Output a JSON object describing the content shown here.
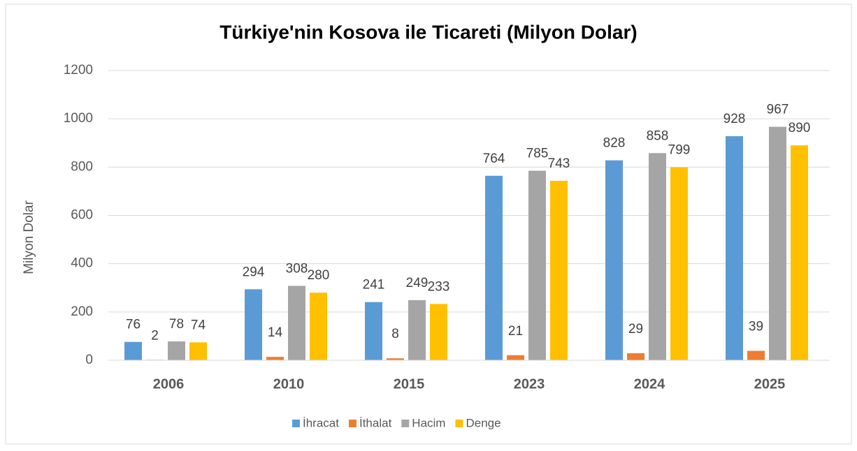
{
  "chart_data": {
    "type": "bar",
    "title": "Türkiye'nin Kosova ile Ticareti (Milyon Dolar)",
    "y_label": "Milyon Dolar",
    "categories": [
      "2006",
      "2010",
      "2015",
      "2023",
      "2024",
      "2025"
    ],
    "series": [
      {
        "name": "İhracat",
        "color": "#5b9bd5",
        "values": [
          76,
          294,
          241,
          764,
          828,
          928
        ]
      },
      {
        "name": "İthalat",
        "color": "#ed7d31",
        "values": [
          2,
          14,
          8,
          21,
          29,
          39
        ]
      },
      {
        "name": "Hacim",
        "color": "#a5a5a5",
        "values": [
          78,
          308,
          249,
          785,
          858,
          967
        ]
      },
      {
        "name": "Denge",
        "color": "#ffc000",
        "values": [
          74,
          280,
          233,
          743,
          799,
          890
        ]
      }
    ],
    "ylim": [
      0,
      1200
    ],
    "yticks": [
      0,
      200,
      400,
      600,
      800,
      1000,
      1200
    ],
    "grid": true,
    "legend": "bottom"
  }
}
